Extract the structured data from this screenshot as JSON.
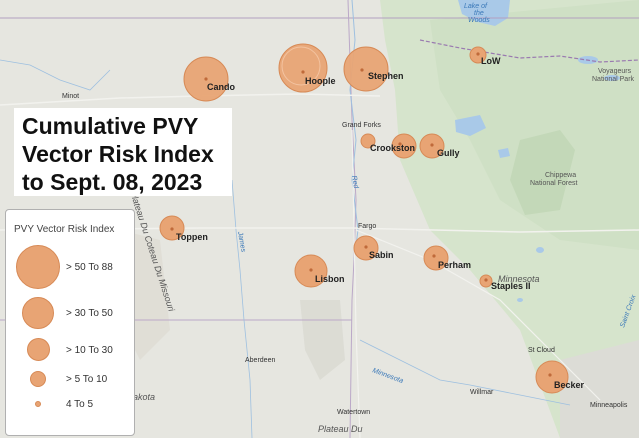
{
  "title_lines": [
    "Cumulative PVY",
    "Vector Risk Index",
    "to Sept. 08, 2023"
  ],
  "legend": {
    "title": "PVY Vector Risk Index",
    "classes": [
      {
        "label": "> 50 To 88"
      },
      {
        "label": "> 30 To 50"
      },
      {
        "label": "> 10 To 30"
      },
      {
        "label": "> 5 To 10"
      },
      {
        "label": "4 To 5"
      }
    ]
  },
  "sites": [
    {
      "name": "Cando"
    },
    {
      "name": "Hoople"
    },
    {
      "name": "Stephen"
    },
    {
      "name": "LoW"
    },
    {
      "name": "Crookston"
    },
    {
      "name": "Gully"
    },
    {
      "name": "Toppen"
    },
    {
      "name": "Sabin"
    },
    {
      "name": "Perham"
    },
    {
      "name": "Lisbon"
    },
    {
      "name": "Staples II"
    },
    {
      "name": "Becker"
    }
  ],
  "basemap_places": [
    {
      "name": "Minot"
    },
    {
      "name": "Grand Forks"
    },
    {
      "name": "Fargo"
    },
    {
      "name": "Aberdeen"
    },
    {
      "name": "St Cloud"
    },
    {
      "name": "Willmar"
    },
    {
      "name": "Watertown"
    },
    {
      "name": "Minneapolis"
    }
  ],
  "basemap_features": {
    "lake_of_the_woods": [
      "Lake of",
      "the",
      "Woods"
    ],
    "voyageurs": [
      "Voyageurs",
      "National Park"
    ],
    "chippewa": [
      "Chippewa",
      "National Forest"
    ],
    "minnesota_state": "Minnesota",
    "coteau": "Plateau Du Coteau Du Missouri",
    "plateau": "Plateau Du",
    "dakota_fragment": "akota",
    "red_river": "Red",
    "james_river": "James",
    "minnesota_river": "Minnesota",
    "saint_croix": "Saint Croix"
  },
  "colors": {
    "circle_fill": "#e8a474",
    "circle_stroke": "#d78a56",
    "forest": "#cfe0c5",
    "water": "#a9c9e8"
  }
}
